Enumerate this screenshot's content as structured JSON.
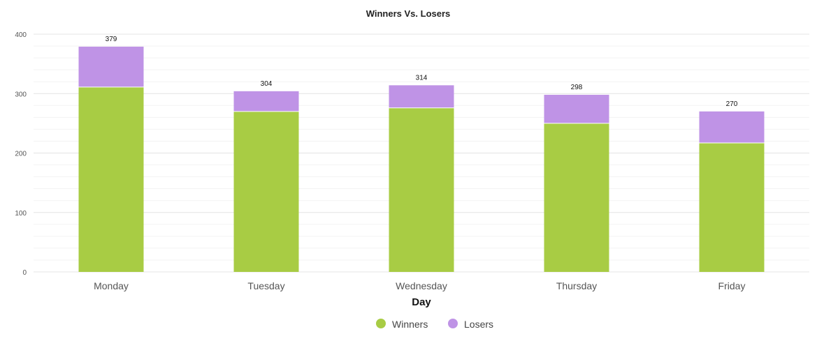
{
  "chart_data": {
    "type": "bar",
    "stacked": true,
    "title": "Winners Vs. Losers",
    "xlabel": "Day",
    "ylabel": "",
    "ylim": [
      0,
      400
    ],
    "yticks": [
      0,
      100,
      200,
      300,
      400
    ],
    "categories": [
      "Monday",
      "Tuesday",
      "Wednesday",
      "Thursday",
      "Friday"
    ],
    "series": [
      {
        "name": "Winners",
        "color": "#a8cc44",
        "values": [
          311,
          270,
          276,
          250,
          217
        ]
      },
      {
        "name": "Losers",
        "color": "#bf93e6",
        "values": [
          68,
          34,
          38,
          48,
          53
        ]
      }
    ],
    "totals": [
      379,
      304,
      314,
      298,
      270
    ],
    "grid": true,
    "legend": "bottom-center"
  }
}
